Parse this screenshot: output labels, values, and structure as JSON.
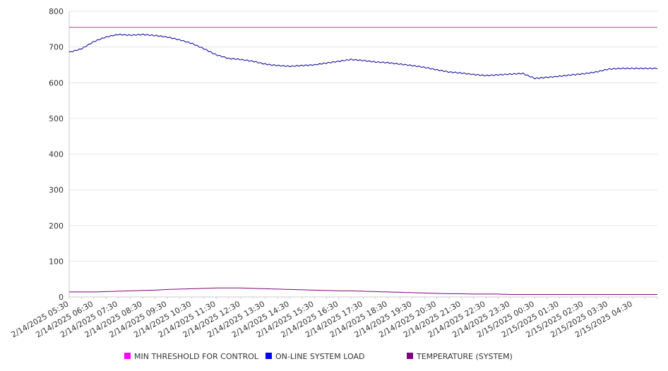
{
  "chart_data": {
    "type": "line",
    "title": "",
    "xlabel": "",
    "ylabel": "",
    "ylim": [
      0,
      800
    ],
    "y_ticks": [
      0,
      100,
      200,
      300,
      400,
      500,
      600,
      700,
      800
    ],
    "grid": "horizontal",
    "legend_position": "bottom",
    "x_tick_labels": [
      "2/14/2025 05:30",
      "2/14/2025 06:30",
      "2/14/2025 07:30",
      "2/14/2025 08:30",
      "2/14/2025 09:30",
      "2/14/2025 10:30",
      "2/14/2025 11:30",
      "2/14/2025 12:30",
      "2/14/2025 13:30",
      "2/14/2025 14:30",
      "2/14/2025 15:30",
      "2/14/2025 16:30",
      "2/14/2025 17:30",
      "2/14/2025 18:30",
      "2/14/2025 19:30",
      "2/14/2025 20:30",
      "2/14/2025 21:30",
      "2/14/2025 22:30",
      "2/14/2025 23:30",
      "2/15/2025 00:30",
      "2/15/2025 01:30",
      "2/15/2025 02:30",
      "2/15/2025 03:30",
      "2/15/2025 04:30"
    ],
    "x_hours": [
      0,
      0.5,
      1,
      1.5,
      2,
      2.5,
      3,
      3.5,
      4,
      4.5,
      5,
      5.5,
      6,
      6.5,
      7,
      7.5,
      8,
      8.5,
      9,
      9.5,
      10,
      10.5,
      11,
      11.5,
      12,
      12.5,
      13,
      13.5,
      14,
      14.5,
      15,
      15.5,
      16,
      16.5,
      17,
      17.5,
      18,
      18.5,
      19,
      19.5,
      20,
      20.5,
      21,
      21.5,
      22,
      22.5,
      23,
      23.5,
      24
    ],
    "series": [
      {
        "name": "MIN THRESHOLD FOR CONTROL",
        "color": "#cc33cc",
        "legend_color": "#ff00ff",
        "values": [
          755,
          755,
          755,
          755,
          755,
          755,
          755,
          755,
          755,
          755,
          755,
          755,
          755,
          755,
          755,
          755,
          755,
          755,
          755,
          755,
          755,
          755,
          755,
          755,
          755,
          755,
          755,
          755,
          755,
          755,
          755,
          755,
          755,
          755,
          755,
          755,
          755,
          755,
          755,
          755,
          755,
          755,
          755,
          755,
          755,
          755,
          755,
          755,
          755
        ]
      },
      {
        "name": "ON-LINE SYSTEM LOAD",
        "color": "#000099",
        "legend_color": "#0000ff",
        "values": [
          685,
          695,
          715,
          728,
          735,
          733,
          735,
          732,
          728,
          720,
          710,
          695,
          678,
          668,
          665,
          660,
          652,
          648,
          646,
          648,
          650,
          655,
          660,
          665,
          662,
          658,
          656,
          652,
          648,
          643,
          636,
          630,
          627,
          623,
          620,
          622,
          624,
          626,
          612,
          615,
          618,
          622,
          625,
          630,
          638,
          640,
          640,
          640,
          640
        ]
      },
      {
        "name": "TEMPERATURE (SYSTEM)",
        "color": "#800080",
        "legend_color": "#800080",
        "values": [
          14,
          14,
          14,
          15,
          16,
          17,
          18,
          19,
          21,
          22,
          23,
          24,
          25,
          25,
          25,
          24,
          23,
          22,
          21,
          20,
          19,
          18,
          17,
          17,
          16,
          15,
          14,
          13,
          12,
          11,
          10,
          9,
          9,
          8,
          8,
          8,
          7,
          7,
          7,
          7,
          7,
          7,
          7,
          7,
          7,
          7,
          7,
          7,
          7
        ]
      }
    ]
  }
}
